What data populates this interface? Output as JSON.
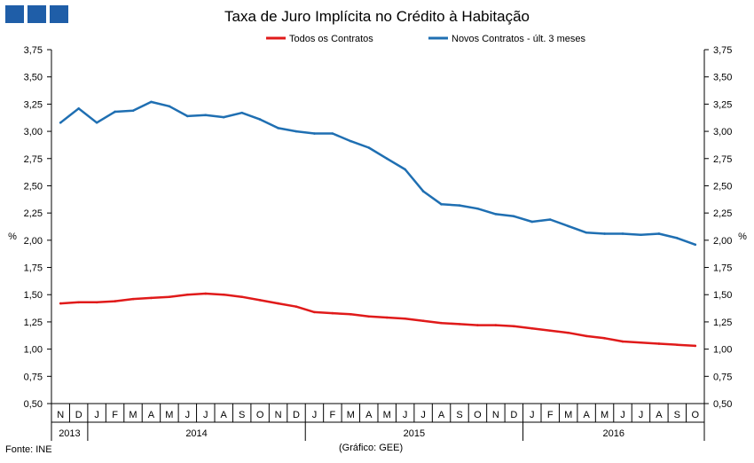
{
  "chart_data": {
    "type": "line",
    "title": "Taxa de Juro Implícita no Crédito à Habitação",
    "ylabel_left": "%",
    "ylabel_right": "%",
    "ylim": [
      0.5,
      3.75
    ],
    "yticks": [
      "0,50",
      "0,75",
      "1,00",
      "1,25",
      "1,50",
      "1,75",
      "2,00",
      "2,25",
      "2,50",
      "2,75",
      "3,00",
      "3,25",
      "3,50",
      "3,75"
    ],
    "ytick_values": [
      0.5,
      0.75,
      1.0,
      1.25,
      1.5,
      1.75,
      2.0,
      2.25,
      2.5,
      2.75,
      3.0,
      3.25,
      3.5,
      3.75
    ],
    "categories": [
      "N",
      "D",
      "J",
      "F",
      "M",
      "A",
      "M",
      "J",
      "J",
      "A",
      "S",
      "O",
      "N",
      "D",
      "J",
      "F",
      "M",
      "A",
      "M",
      "J",
      "J",
      "A",
      "S",
      "O",
      "N",
      "D",
      "J",
      "F",
      "M",
      "A",
      "M",
      "J",
      "J",
      "A",
      "S",
      "O"
    ],
    "years": [
      {
        "label": "2013",
        "start": 0,
        "end": 2
      },
      {
        "label": "2014",
        "start": 2,
        "end": 14
      },
      {
        "label": "2015",
        "start": 14,
        "end": 26
      },
      {
        "label": "2016",
        "start": 26,
        "end": 36
      }
    ],
    "series": [
      {
        "name": "Todos os Contratos",
        "color": "#e01a1a",
        "values": [
          1.42,
          1.43,
          1.43,
          1.44,
          1.46,
          1.47,
          1.48,
          1.5,
          1.51,
          1.5,
          1.48,
          1.45,
          1.42,
          1.39,
          1.34,
          1.33,
          1.32,
          1.3,
          1.29,
          1.28,
          1.26,
          1.24,
          1.23,
          1.22,
          1.22,
          1.21,
          1.19,
          1.17,
          1.15,
          1.12,
          1.1,
          1.07,
          1.06,
          1.05,
          1.04,
          1.03
        ]
      },
      {
        "name": "Novos Contratos - últ. 3 meses",
        "color": "#1f6fb2",
        "values": [
          3.08,
          3.21,
          3.08,
          3.18,
          3.19,
          3.27,
          3.23,
          3.14,
          3.15,
          3.13,
          3.17,
          3.11,
          3.03,
          3.0,
          2.98,
          2.98,
          2.91,
          2.85,
          2.75,
          2.65,
          2.45,
          2.33,
          2.32,
          2.29,
          2.24,
          2.22,
          2.17,
          2.19,
          2.13,
          2.07,
          2.06,
          2.06,
          2.05,
          2.06,
          2.02,
          1.96
        ]
      }
    ]
  },
  "footer": {
    "source": "Fonte: INE",
    "credit": "(Gráfico: GEE)"
  },
  "brand": {
    "color": "#1f5ea8"
  }
}
